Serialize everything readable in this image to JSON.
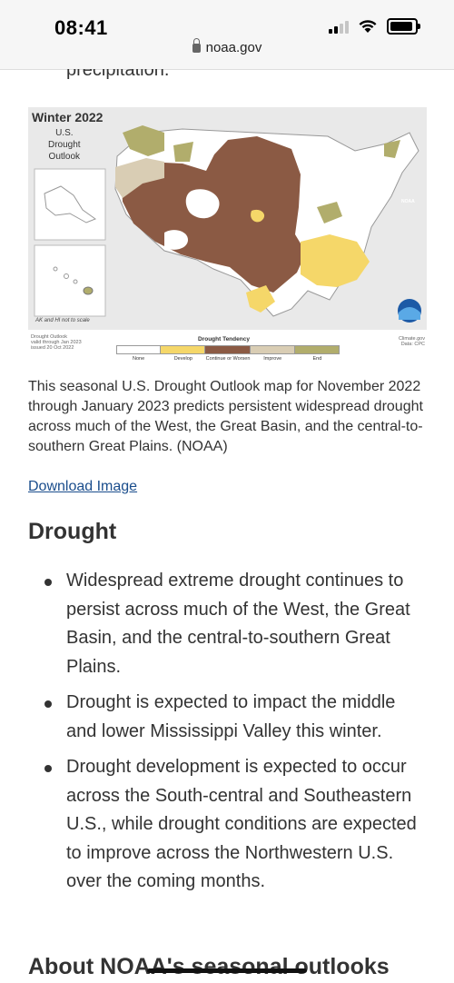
{
  "status": {
    "time": "08:41"
  },
  "browser": {
    "url": "noaa.gov"
  },
  "article": {
    "cut_line": "precipitation.",
    "map": {
      "title": "Winter 2022",
      "subtitle": [
        "U.S.",
        "Drought",
        "Outlook"
      ],
      "inset_note": "AK and HI not to scale",
      "footer_left": [
        "Drought Outlook",
        "valid through Jan 2023",
        "issued 20 Oct 2022"
      ],
      "footer_right": [
        "Climate.gov",
        "Data: CPC"
      ],
      "legend_title": "Drought Tendency",
      "legend": [
        {
          "label": "None",
          "color": "#ffffff"
        },
        {
          "label": "Develop",
          "color": "#f5d769"
        },
        {
          "label": "Continue or Worsen",
          "color": "#8b5a44"
        },
        {
          "label": "Improve",
          "color": "#d9cdb4"
        },
        {
          "label": "End",
          "color": "#b1ad6c"
        }
      ],
      "noaa_logo": "NOAA"
    },
    "caption": "This seasonal U.S. Drought Outlook map for November 2022 through January 2023 predicts persistent widespread drought across much of the West, the Great Basin, and the central-to-southern Great Plains. (NOAA)",
    "download_label": "Download Image",
    "drought_heading": "Drought",
    "bullets": [
      "Widespread extreme drought continues to persist across much of the West, the Great Basin, and the central-to-southern Great Plains.",
      "Drought is expected to impact the middle and lower Mississippi Valley this winter.",
      "Drought development is expected to occur across the South-central and Southeastern U.S., while drought conditions are expected to improve across the Northwestern U.S. over the coming months."
    ],
    "about_heading": "About NOAA's seasonal outlooks"
  }
}
